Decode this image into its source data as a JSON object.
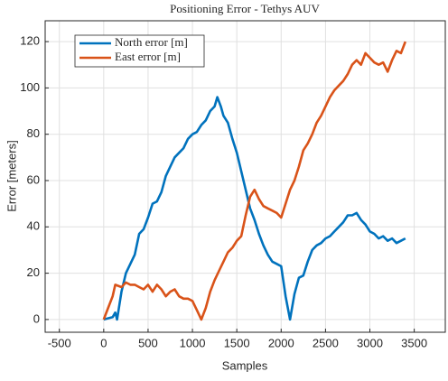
{
  "chart_data": {
    "type": "line",
    "title": "Positioning Error - Tethys AUV",
    "x_label": "Samples",
    "y_label": "Error [meters]",
    "xlim": [
      -660,
      3850
    ],
    "ylim": [
      -5.5,
      129
    ],
    "xticks": [
      -500,
      0,
      500,
      1000,
      1500,
      2000,
      2500,
      3000,
      3500
    ],
    "yticks": [
      0,
      20,
      40,
      60,
      80,
      100,
      120
    ],
    "grid": true,
    "legend": "top-left",
    "series": [
      {
        "name": "North error [m]",
        "color": "#0072BD",
        "x": [
          0,
          100,
          130,
          150,
          200,
          250,
          300,
          350,
          400,
          450,
          500,
          550,
          600,
          650,
          700,
          750,
          800,
          850,
          900,
          950,
          1000,
          1050,
          1100,
          1150,
          1200,
          1250,
          1280,
          1320,
          1350,
          1400,
          1450,
          1500,
          1550,
          1600,
          1650,
          1700,
          1750,
          1800,
          1850,
          1900,
          1950,
          2000,
          2050,
          2100,
          2150,
          2200,
          2250,
          2300,
          2350,
          2400,
          2450,
          2500,
          2550,
          2600,
          2650,
          2700,
          2750,
          2800,
          2850,
          2900,
          2950,
          3000,
          3050,
          3100,
          3150,
          3200,
          3250,
          3300,
          3350,
          3400
        ],
        "values": [
          0,
          1,
          3,
          0,
          12,
          20,
          24,
          28,
          37,
          39,
          44,
          50,
          51,
          55,
          62,
          66,
          70,
          72,
          74,
          78,
          80,
          81,
          84,
          86,
          90,
          92,
          96,
          92,
          88,
          85,
          78,
          72,
          64,
          56,
          48,
          43,
          37,
          32,
          28,
          25,
          24,
          23,
          10,
          0,
          11,
          18,
          19,
          25,
          30,
          32,
          33,
          35,
          36,
          38,
          40,
          42,
          45,
          45,
          46,
          43,
          41,
          38,
          37,
          35,
          36,
          34,
          35,
          33,
          34,
          35
        ]
      },
      {
        "name": "East error [m]",
        "color": "#D95319",
        "x": [
          0,
          50,
          100,
          130,
          200,
          250,
          300,
          350,
          400,
          450,
          500,
          550,
          600,
          650,
          700,
          750,
          800,
          850,
          900,
          950,
          1000,
          1050,
          1100,
          1150,
          1200,
          1250,
          1300,
          1350,
          1400,
          1450,
          1500,
          1550,
          1600,
          1650,
          1700,
          1750,
          1800,
          1850,
          1900,
          1950,
          2000,
          2050,
          2100,
          2150,
          2200,
          2250,
          2300,
          2350,
          2400,
          2450,
          2500,
          2550,
          2600,
          2650,
          2700,
          2750,
          2800,
          2850,
          2900,
          2950,
          3000,
          3050,
          3100,
          3150,
          3200,
          3250,
          3300,
          3350,
          3400
        ],
        "values": [
          0,
          5,
          10,
          15,
          14,
          16,
          15,
          15,
          14,
          13,
          15,
          12,
          15,
          13,
          10,
          12,
          13,
          10,
          9,
          9,
          8,
          4,
          0,
          5,
          12,
          17,
          21,
          25,
          29,
          31,
          34,
          36,
          45,
          53,
          56,
          52,
          49,
          48,
          47,
          46,
          44,
          50,
          56,
          60,
          66,
          73,
          76,
          80,
          85,
          88,
          92,
          96,
          99,
          101,
          103,
          106,
          110,
          112,
          110,
          115,
          113,
          111,
          110,
          111,
          107,
          112,
          116,
          115,
          120
        ]
      }
    ]
  }
}
